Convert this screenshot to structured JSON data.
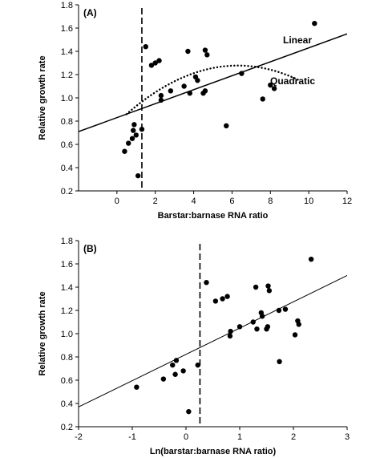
{
  "chart_data": [
    {
      "type": "scatter",
      "panel_label": "(A)",
      "xlabel": "Barstar:barnase RNA ratio",
      "ylabel": "Relative growth rate",
      "xlim": [
        -2,
        12
      ],
      "ylim": [
        0.2,
        1.8
      ],
      "xticks": [
        {
          "value": 0,
          "label": "0"
        },
        {
          "value": 2,
          "label": "2"
        },
        {
          "value": 4,
          "label": "4"
        },
        {
          "value": 6,
          "label": "6"
        },
        {
          "value": 8,
          "label": "8"
        },
        {
          "value": 10,
          "label": "10"
        },
        {
          "value": 12,
          "label": "12"
        }
      ],
      "yticks": [
        {
          "value": 0.2,
          "label": "0.2"
        },
        {
          "value": 0.4,
          "label": "0.4"
        },
        {
          "value": 0.6,
          "label": "0.6"
        },
        {
          "value": 0.8,
          "label": "0.8"
        },
        {
          "value": 1.0,
          "label": "1.0"
        },
        {
          "value": 1.2,
          "label": "1.2"
        },
        {
          "value": 1.4,
          "label": "1.4"
        },
        {
          "value": 1.6,
          "label": "1.6"
        },
        {
          "value": 1.8,
          "label": "1.8"
        }
      ],
      "grid": false,
      "points": [
        {
          "x": 0.4,
          "y": 0.54
        },
        {
          "x": 0.6,
          "y": 0.61
        },
        {
          "x": 0.8,
          "y": 0.65
        },
        {
          "x": 0.85,
          "y": 0.72
        },
        {
          "x": 0.9,
          "y": 0.77
        },
        {
          "x": 1.0,
          "y": 0.68
        },
        {
          "x": 1.1,
          "y": 0.33
        },
        {
          "x": 1.3,
          "y": 0.73
        },
        {
          "x": 1.5,
          "y": 1.44
        },
        {
          "x": 1.8,
          "y": 1.28
        },
        {
          "x": 2.0,
          "y": 1.3
        },
        {
          "x": 2.2,
          "y": 1.32
        },
        {
          "x": 2.3,
          "y": 0.98
        },
        {
          "x": 2.3,
          "y": 1.02
        },
        {
          "x": 2.8,
          "y": 1.06
        },
        {
          "x": 3.5,
          "y": 1.1
        },
        {
          "x": 3.7,
          "y": 1.4
        },
        {
          "x": 3.8,
          "y": 1.04
        },
        {
          "x": 4.1,
          "y": 1.18
        },
        {
          "x": 4.2,
          "y": 1.15
        },
        {
          "x": 4.5,
          "y": 1.04
        },
        {
          "x": 4.6,
          "y": 1.06
        },
        {
          "x": 4.6,
          "y": 1.41
        },
        {
          "x": 4.7,
          "y": 1.37
        },
        {
          "x": 5.7,
          "y": 0.76
        },
        {
          "x": 6.5,
          "y": 1.21
        },
        {
          "x": 7.6,
          "y": 0.99
        },
        {
          "x": 8.0,
          "y": 1.11
        },
        {
          "x": 8.2,
          "y": 1.08
        },
        {
          "x": 10.3,
          "y": 1.64
        }
      ],
      "threshold_x": 1.3,
      "linear_fit": {
        "label": "Linear",
        "x": [
          -2,
          12
        ],
        "y": [
          0.71,
          1.55
        ]
      },
      "quadratic_fit": {
        "label": "Quadratic",
        "x0": 0.5,
        "x1": 9.5,
        "a": -0.0124,
        "b": 0.1564,
        "c": 0.7845
      }
    },
    {
      "type": "scatter",
      "panel_label": "(B)",
      "xlabel": "Ln(barstar:barnase RNA ratio)",
      "ylabel": "Relative growth rate",
      "xlim": [
        -2,
        3
      ],
      "ylim": [
        0.2,
        1.8
      ],
      "xticks": [
        {
          "value": -2,
          "label": "-2"
        },
        {
          "value": -1,
          "label": "-1"
        },
        {
          "value": 0,
          "label": "0"
        },
        {
          "value": 1,
          "label": "1"
        },
        {
          "value": 2,
          "label": "2"
        },
        {
          "value": 3,
          "label": "3"
        }
      ],
      "yticks": [
        {
          "value": 0.2,
          "label": "0.2"
        },
        {
          "value": 0.4,
          "label": "0.4"
        },
        {
          "value": 0.6,
          "label": "0.6"
        },
        {
          "value": 0.8,
          "label": "0.8"
        },
        {
          "value": 1.0,
          "label": "1.0"
        },
        {
          "value": 1.2,
          "label": "1.2"
        },
        {
          "value": 1.4,
          "label": "1.4"
        },
        {
          "value": 1.6,
          "label": "1.6"
        },
        {
          "value": 1.8,
          "label": "1.8"
        }
      ],
      "grid": false,
      "points": [
        {
          "x": -0.92,
          "y": 0.54
        },
        {
          "x": -0.42,
          "y": 0.61
        },
        {
          "x": -0.25,
          "y": 0.73
        },
        {
          "x": -0.2,
          "y": 0.65
        },
        {
          "x": -0.18,
          "y": 0.77
        },
        {
          "x": -0.05,
          "y": 0.68
        },
        {
          "x": 0.05,
          "y": 0.33
        },
        {
          "x": 0.22,
          "y": 0.73
        },
        {
          "x": 0.38,
          "y": 1.44
        },
        {
          "x": 0.55,
          "y": 1.28
        },
        {
          "x": 0.68,
          "y": 1.3
        },
        {
          "x": 0.77,
          "y": 1.32
        },
        {
          "x": 0.82,
          "y": 0.98
        },
        {
          "x": 0.83,
          "y": 1.02
        },
        {
          "x": 1.0,
          "y": 1.06
        },
        {
          "x": 1.25,
          "y": 1.1
        },
        {
          "x": 1.3,
          "y": 1.4
        },
        {
          "x": 1.32,
          "y": 1.04
        },
        {
          "x": 1.4,
          "y": 1.18
        },
        {
          "x": 1.42,
          "y": 1.15
        },
        {
          "x": 1.5,
          "y": 1.04
        },
        {
          "x": 1.52,
          "y": 1.06
        },
        {
          "x": 1.53,
          "y": 1.41
        },
        {
          "x": 1.55,
          "y": 1.37
        },
        {
          "x": 1.74,
          "y": 0.76
        },
        {
          "x": 1.73,
          "y": 1.2
        },
        {
          "x": 1.85,
          "y": 1.21
        },
        {
          "x": 2.03,
          "y": 0.99
        },
        {
          "x": 2.08,
          "y": 1.11
        },
        {
          "x": 2.1,
          "y": 1.08
        },
        {
          "x": 2.33,
          "y": 1.64
        }
      ],
      "threshold_x": 0.26,
      "linear_fit": {
        "x": [
          -2,
          3
        ],
        "y": [
          0.37,
          1.5
        ]
      }
    }
  ]
}
